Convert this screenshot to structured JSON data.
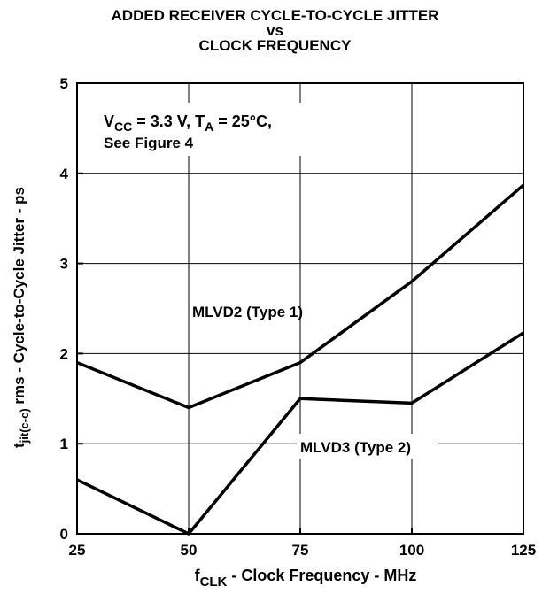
{
  "chart_data": {
    "type": "line",
    "title": [
      "ADDED RECEIVER CYCLE-TO-CYCLE JITTER",
      "vs",
      "CLOCK FREQUENCY"
    ],
    "xlabel": {
      "main": "f",
      "sub": "CLK",
      "rest": " - Clock Frequency - MHz"
    },
    "ylabel": {
      "main": "t",
      "sub": "jit(c-c)",
      "rest": " rms - Cycle-to-Cycle Jitter - ps"
    },
    "x_ticks": [
      "25",
      "50",
      "75",
      "100",
      "125"
    ],
    "y_ticks": [
      "0",
      "1",
      "2",
      "3",
      "4",
      "5"
    ],
    "xlim": [
      25,
      125
    ],
    "ylim": [
      0,
      5
    ],
    "grid": true,
    "conditions": {
      "line1": [
        {
          "t": "V",
          "s": ""
        },
        {
          "t": "CC",
          "s": "sub"
        },
        {
          "t": " = 3.3 V, T",
          "s": ""
        },
        {
          "t": "A",
          "s": "sub"
        },
        {
          "t": " = 25°C,",
          "s": ""
        }
      ],
      "line2": "See Figure 4"
    },
    "series": [
      {
        "name": "MLVD2 (Type 1)",
        "x": [
          25,
          50,
          75,
          100,
          125
        ],
        "y": [
          1.9,
          1.4,
          1.9,
          2.8,
          3.87
        ]
      },
      {
        "name": "MLVD3 (Type 2)",
        "x": [
          25,
          50,
          75,
          100,
          125
        ],
        "y": [
          0.6,
          0.0,
          1.5,
          1.45,
          2.23
        ]
      }
    ]
  }
}
